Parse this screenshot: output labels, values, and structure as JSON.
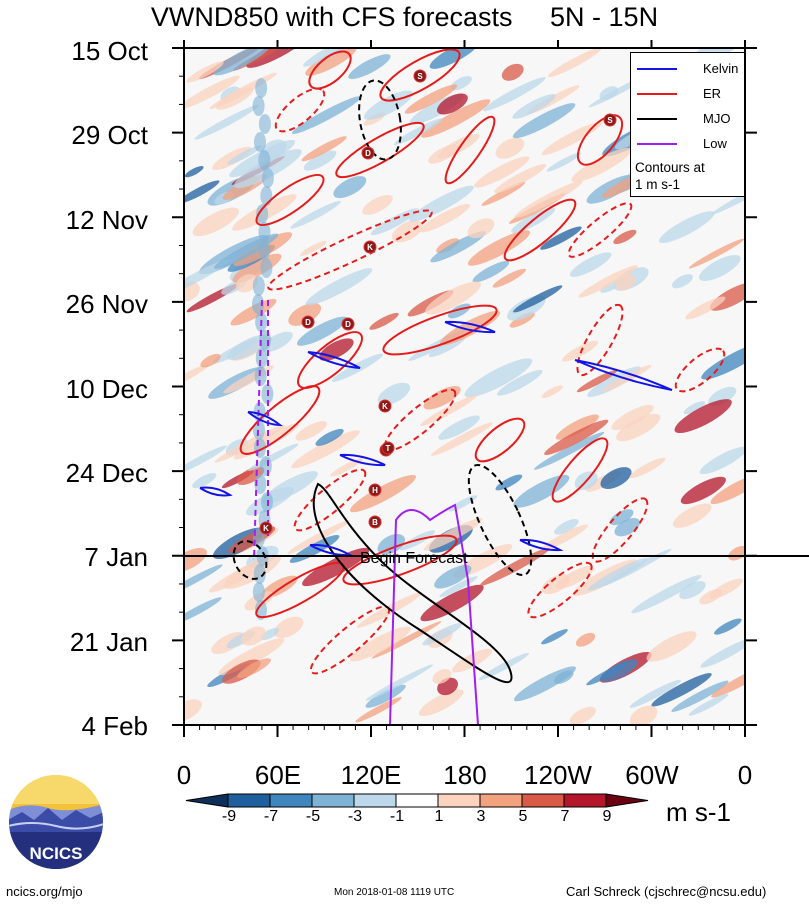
{
  "title": "VWND850 with CFS forecasts     5N - 15N",
  "chart_data": {
    "type": "heatmap",
    "title": "VWND850 with CFS forecasts",
    "region": "5N - 15N",
    "x_axis": {
      "ticks": [
        "0",
        "60E",
        "120E",
        "180",
        "120W",
        "60W",
        "0"
      ],
      "range_deg_east": [
        0,
        360
      ]
    },
    "y_axis": {
      "ticks": [
        "15 Oct",
        "29 Oct",
        "12 Nov",
        "26 Nov",
        "10 Dec",
        "24 Dec",
        "7 Jan",
        "21 Jan",
        "4 Feb"
      ],
      "reversed": true
    },
    "colorbar": {
      "levels": [
        "-9",
        "-7",
        "-5",
        "-3",
        "-1",
        "1",
        "3",
        "5",
        "7",
        "9"
      ],
      "colors": [
        "#0d2f5a",
        "#1f5f9e",
        "#3f86bf",
        "#7fb3d6",
        "#bcd8ea",
        "#ffffff",
        "#fbd3bf",
        "#f3a27f",
        "#d95a47",
        "#b4162b",
        "#6b0012"
      ],
      "units": "m s-1"
    },
    "forecast_line": {
      "label": "Begin Forecast",
      "date": "7 Jan"
    },
    "legend": {
      "entries": [
        {
          "name": "Kelvin",
          "color": "#1414e6"
        },
        {
          "name": "ER",
          "color": "#e61c1c"
        },
        {
          "name": "MJO",
          "color": "#000000"
        },
        {
          "name": "Low",
          "color": "#a020f0"
        }
      ],
      "note": "Contours at\n1 m s-1",
      "placement": "top-right"
    },
    "storm_markers": [
      "S",
      "S",
      "D",
      "K",
      "D",
      "D",
      "K",
      "K",
      "T",
      "H",
      "B",
      "K"
    ]
  },
  "footer": {
    "left": "ncics.org/mjo",
    "middle": "Mon 2018-01-08 1119 UTC",
    "right": "Carl Schreck (cjschrec@ncsu.edu)"
  },
  "logo_text": "NCICS"
}
